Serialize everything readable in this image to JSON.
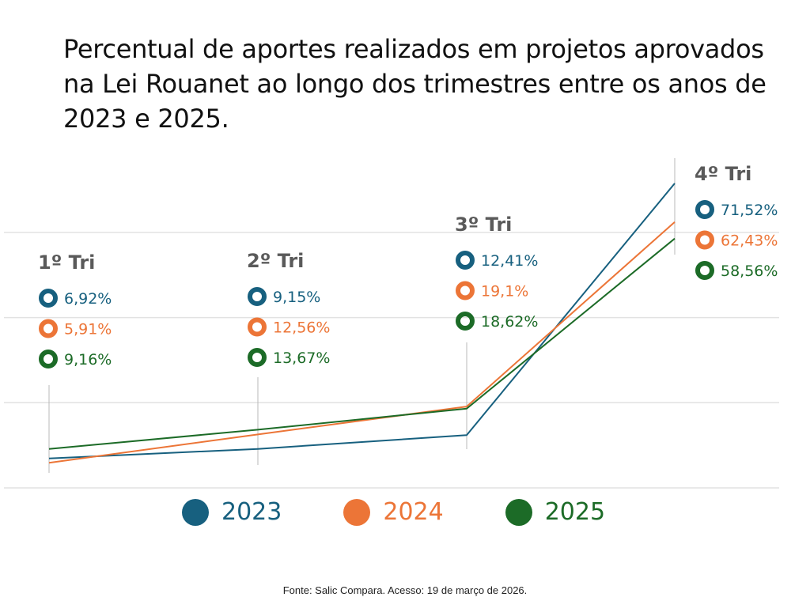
{
  "title": "Percentual de aportes realizados em projetos aprovados na Lei Rouanet ao longo dos trimestres entre os anos de 2023 e 2025.",
  "source": "Fonte: Salic Compara. Acesso: 19 de março de 2026.",
  "chart_data": {
    "type": "line",
    "title": "Percentual de aportes realizados em projetos aprovados na Lei Rouanet ao longo dos trimestres entre os anos de 2023 e 2025.",
    "xlabel": "",
    "ylabel": "",
    "categories": [
      "1º Tri",
      "2º Tri",
      "3º Tri",
      "4º Tri"
    ],
    "ylim": [
      0,
      60
    ],
    "gridlines": [
      0,
      20,
      40,
      60
    ],
    "grid": true,
    "legend_position": "bottom-center",
    "series": [
      {
        "name": "2023",
        "color": "#17607f",
        "values": [
          6.92,
          9.15,
          12.41,
          71.52
        ],
        "labels": [
          "6,92%",
          "9,15%",
          "12,41%",
          "71,52%"
        ]
      },
      {
        "name": "2024",
        "color": "#ec7537",
        "values": [
          5.91,
          12.56,
          19.1,
          62.43
        ],
        "labels": [
          "5,91%",
          "12,56%",
          "19,1%",
          "62,43%"
        ]
      },
      {
        "name": "2025",
        "color": "#1c6b27",
        "values": [
          9.16,
          13.67,
          18.62,
          58.56
        ],
        "labels": [
          "9,16%",
          "13,67%",
          "18,62%",
          "58,56%"
        ]
      }
    ]
  }
}
